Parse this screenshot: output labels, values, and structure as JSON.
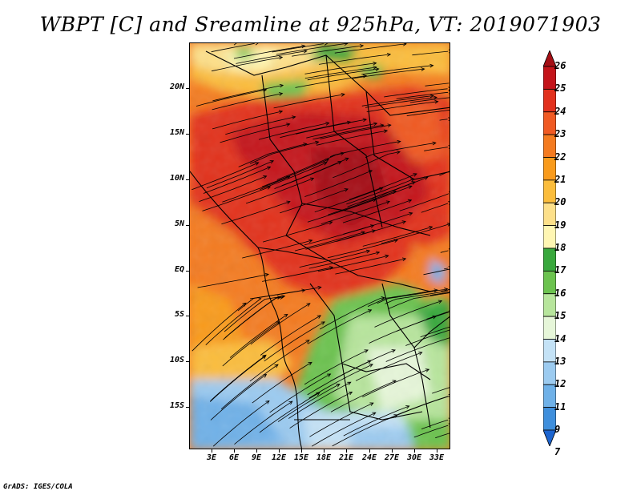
{
  "title": "WBPT [C] and Sreamline at 925hPa, VT: 2019071903",
  "credit": "GrADS: IGES/COLA",
  "lat_labels": [
    "20N",
    "15N",
    "10N",
    "5N",
    "EQ",
    "5S",
    "10S",
    "15S"
  ],
  "lon_labels": [
    "3E",
    "6E",
    "9E",
    "12E",
    "15E",
    "18E",
    "21E",
    "24E",
    "27E",
    "30E",
    "33E"
  ],
  "colorbar": {
    "labels": [
      "26",
      "25",
      "24",
      "23",
      "22",
      "21",
      "20",
      "19",
      "18",
      "17",
      "16",
      "15",
      "14",
      "13",
      "12",
      "11",
      "9",
      "7"
    ],
    "colors": [
      "#a50f15",
      "#c4141a",
      "#e2311d",
      "#f05a23",
      "#f47b20",
      "#f99b1c",
      "#fbbd3c",
      "#fde08a",
      "#fff6b3",
      "#39a83d",
      "#6cc34f",
      "#b7e59c",
      "#e6f6d9",
      "#c4e2f6",
      "#9ccbf0",
      "#6fb1e8",
      "#3f8fdc",
      "#1c64cf"
    ]
  },
  "map": {
    "lat_range": [
      -20,
      24
    ],
    "lon_range": [
      0,
      35
    ],
    "fill_legend": {
      "warm_core": "#e2311d",
      "hot": "#c4141a",
      "orange": "#f47b20",
      "yellow": "#fbbd3c",
      "green": "#6cc34f",
      "light_green": "#b7e59c",
      "pale": "#e6f6d9",
      "blue": "#9ccbf0",
      "deep_blue": "#6fb1e8"
    }
  }
}
